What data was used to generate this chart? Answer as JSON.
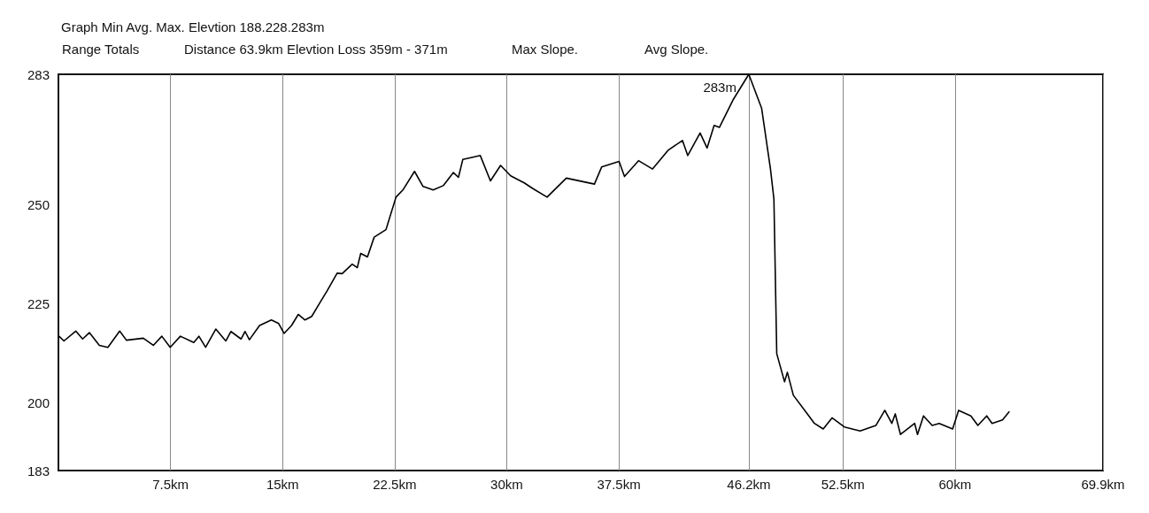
{
  "chart_data": {
    "type": "line",
    "title": "Graph Min Avg. Max. Elevtion 188.228.283m",
    "annotations": [
      "Range Totals",
      "Distance 63.9km Elevtion Loss 359m - 371m",
      "Max Slope.",
      "Avg Slope.",
      {
        "text": "283m",
        "x": 46.2,
        "y": 283
      }
    ],
    "series": [
      {
        "color": "#000000",
        "x": [
          0.04,
          0.37,
          1.16,
          1.62,
          2.07,
          2.74,
          3.31,
          4.1,
          4.55,
          5.68,
          6.35,
          6.92,
          7.48,
          8.16,
          9.06,
          9.4,
          9.85,
          10.53,
          11.2,
          11.54,
          12.22,
          12.49,
          12.78,
          13.46,
          14.25,
          14.74,
          15.1,
          15.6,
          16.05,
          16.5,
          16.95,
          17.52,
          17.97,
          18.65,
          18.99,
          19.66,
          20.0,
          20.23,
          20.68,
          21.13,
          21.92,
          22.59,
          23.05,
          23.83,
          24.4,
          25.08,
          25.75,
          26.43,
          26.77,
          27.06,
          27.67,
          28.23,
          28.91,
          29.59,
          30.26,
          31.17,
          31.73,
          32.7,
          33.99,
          35.87,
          36.35,
          37.52,
          37.88,
          38.82,
          39.76,
          40.82,
          41.76,
          42.11,
          42.94,
          43.41,
          43.88,
          44.23,
          45.17,
          46.2,
          47.06,
          47.65,
          47.88,
          48.07,
          48.59,
          48.78,
          49.18,
          50.12,
          50.59,
          51.18,
          51.77,
          52.59,
          53.65,
          54.71,
          55.3,
          55.77,
          56.0,
          56.35,
          57.3,
          57.49,
          57.89,
          58.47,
          58.94,
          59.84,
          60.24,
          61.06,
          61.53,
          62.12,
          62.48,
          63.18,
          63.61
        ],
        "values": [
          216.9,
          215.7,
          218.2,
          216.2,
          217.8,
          214.6,
          214.1,
          218.2,
          215.9,
          216.4,
          214.6,
          216.9,
          214.1,
          216.9,
          215.3,
          216.9,
          214.1,
          218.7,
          215.7,
          218.1,
          216.2,
          218.1,
          216.0,
          219.6,
          221.0,
          220.1,
          217.6,
          219.6,
          222.4,
          221.0,
          221.9,
          225.5,
          228.3,
          232.8,
          232.7,
          235.1,
          234.2,
          237.8,
          236.9,
          241.9,
          243.8,
          252.0,
          253.8,
          258.5,
          254.7,
          253.8,
          254.9,
          258.2,
          257.0,
          261.5,
          262.0,
          262.5,
          256.1,
          260.0,
          257.4,
          255.6,
          254.2,
          252.0,
          256.8,
          255.3,
          259.6,
          261.0,
          257.2,
          261.2,
          259.1,
          263.9,
          266.3,
          262.5,
          268.2,
          264.4,
          270.1,
          269.6,
          276.7,
          283,
          274.4,
          259.1,
          251.5,
          212.5,
          205.4,
          207.8,
          202.0,
          197.3,
          194.9,
          193.5,
          196.3,
          194.0,
          193.0,
          194.4,
          198.2,
          194.9,
          197.3,
          192.1,
          194.9,
          192.1,
          196.8,
          194.4,
          194.9,
          193.5,
          198.2,
          196.8,
          194.4,
          196.8,
          194.9,
          195.8,
          197.8
        ]
      }
    ],
    "xlim": [
      0,
      69.9
    ],
    "xticks": [
      {
        "value": 7.5,
        "label": "7.5km"
      },
      {
        "value": 15,
        "label": "15km"
      },
      {
        "value": 22.5,
        "label": "22.5km"
      },
      {
        "value": 30,
        "label": "30km"
      },
      {
        "value": 37.5,
        "label": "37.5km"
      },
      {
        "value": 46.2,
        "label": "46.2km"
      },
      {
        "value": 52.5,
        "label": "52.5km"
      },
      {
        "value": 60,
        "label": "60km"
      },
      {
        "value": 69.9,
        "label": "69.9km"
      }
    ],
    "ylim": [
      183,
      283
    ],
    "yticks": [
      183,
      200,
      225,
      250,
      283
    ],
    "grid": "x",
    "marker": "none",
    "line_style": "solid"
  }
}
